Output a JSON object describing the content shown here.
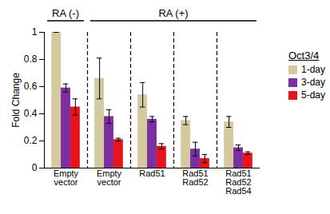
{
  "chart_data": {
    "type": "bar",
    "categories": [
      "Empty vector",
      "Empty vector",
      "Rad51",
      "Rad51 Rad52",
      "Rad51 Rad52 Rad54"
    ],
    "groups": [
      {
        "label": "RA (-)",
        "count": 1
      },
      {
        "label": "RA (+)",
        "count": 4
      }
    ],
    "series": [
      {
        "name": "1-day",
        "color": "#d4c99f",
        "values": [
          1.0,
          0.66,
          0.54,
          0.35,
          0.34
        ],
        "errors": [
          0,
          0.15,
          0.09,
          0.03,
          0.04
        ]
      },
      {
        "name": "3-day",
        "color": "#7b2fa0",
        "values": [
          0.59,
          0.38,
          0.36,
          0.14,
          0.15
        ],
        "errors": [
          0.03,
          0.05,
          0.02,
          0.05,
          0.02
        ]
      },
      {
        "name": "5-day",
        "color": "#e8141b",
        "values": [
          0.45,
          0.21,
          0.16,
          0.07,
          0.11
        ],
        "errors": [
          0.06,
          0.01,
          0.02,
          0.03,
          0.01
        ]
      }
    ],
    "y_label": "Fold Change",
    "legend_title": "Oct3/4",
    "legend": "right",
    "ylim": [
      0,
      1
    ],
    "yticks": [
      0,
      0.2,
      0.4,
      0.6,
      0.8,
      1
    ],
    "grid": false
  }
}
